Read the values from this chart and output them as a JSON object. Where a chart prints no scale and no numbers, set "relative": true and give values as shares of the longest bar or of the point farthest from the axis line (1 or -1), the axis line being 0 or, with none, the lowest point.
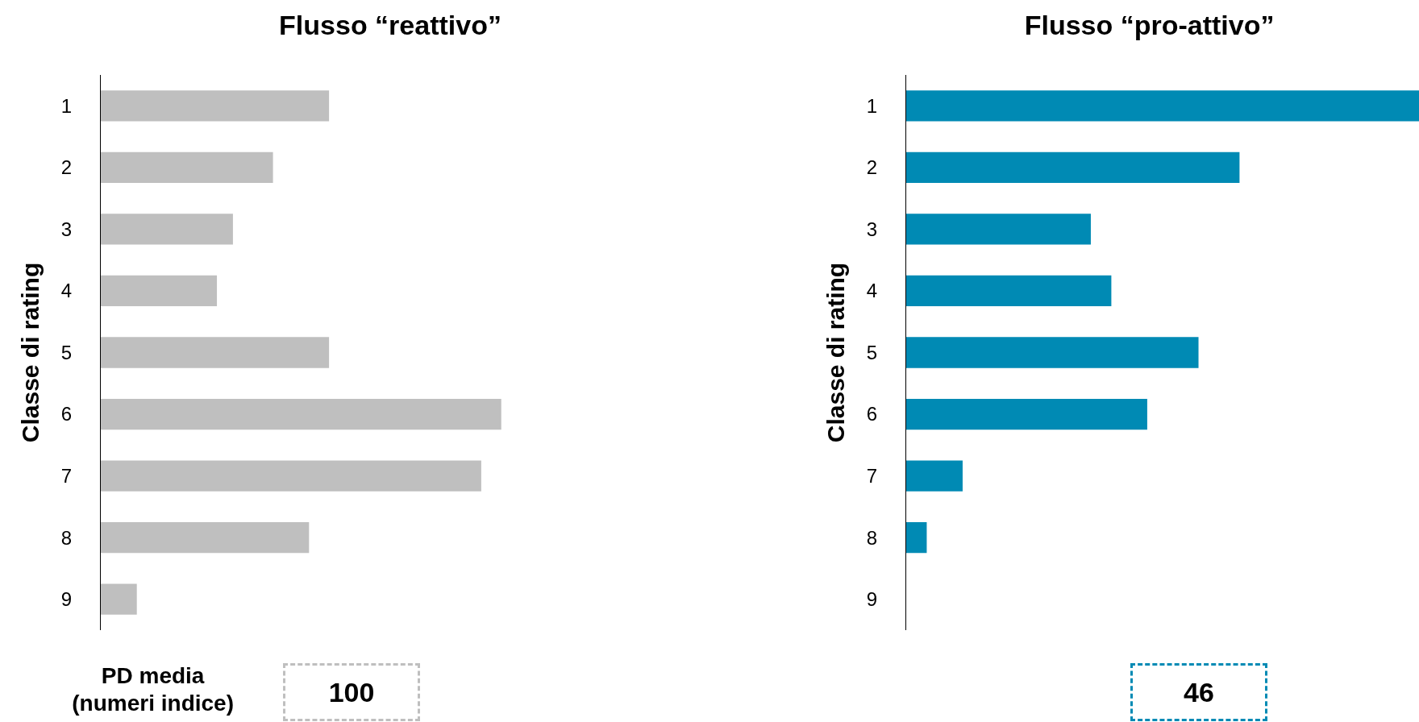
{
  "chart_data": [
    {
      "type": "bar",
      "orientation": "horizontal",
      "relative": true,
      "title": "Flusso “reattivo”",
      "ylabel": "Classe di rating",
      "categories": [
        "1",
        "2",
        "3",
        "4",
        "5",
        "6",
        "7",
        "8",
        "9"
      ],
      "color": "#bfbfbf",
      "values": [
        0.57,
        0.43,
        0.33,
        0.29,
        0.57,
        1,
        0.95,
        0.52,
        0.09
      ],
      "tick_labels": "y",
      "annotations": [
        "PD media\n(numeri indice)",
        "100"
      ]
    },
    {
      "type": "bar",
      "orientation": "horizontal",
      "relative": true,
      "title": "Flusso “pro-attivo”",
      "ylabel": "Classe di rating",
      "categories": [
        "1",
        "2",
        "3",
        "4",
        "5",
        "6",
        "7",
        "8",
        "9"
      ],
      "color": "#008ab4",
      "values": [
        1,
        0.65,
        0.36,
        0.4,
        0.57,
        0.47,
        0.11,
        0.04,
        0
      ],
      "tick_labels": "y",
      "annotations": [
        "46"
      ]
    }
  ]
}
